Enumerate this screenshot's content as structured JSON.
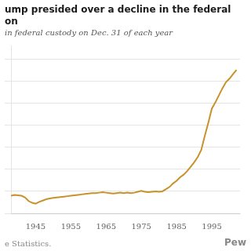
{
  "chart_data": {
    "type": "line",
    "title": [
      "ump presided over a decline in the federal",
      "on"
    ],
    "subtitle": "in federal custody on Dec. 31 of each year",
    "annotations": [
      "e Statistics.",
      "Pew"
    ],
    "x": [
      1938,
      1939,
      1940,
      1941,
      1942,
      1943,
      1944,
      1945,
      1946,
      1947,
      1948,
      1949,
      1950,
      1951,
      1952,
      1953,
      1954,
      1955,
      1956,
      1957,
      1958,
      1959,
      1960,
      1961,
      1962,
      1963,
      1964,
      1965,
      1966,
      1967,
      1968,
      1969,
      1970,
      1971,
      1972,
      1973,
      1974,
      1975,
      1976,
      1977,
      1978,
      1979,
      1980,
      1981,
      1982,
      1983,
      1984,
      1985,
      1986,
      1987,
      1988,
      1989,
      1990,
      1991,
      1992,
      1993,
      1994,
      1995,
      1996,
      1997,
      1998,
      1999,
      2000,
      2001,
      2002
    ],
    "values": [
      20000,
      21000,
      20500,
      20000,
      18000,
      14000,
      12000,
      11000,
      13000,
      14500,
      16000,
      17000,
      17500,
      18000,
      18500,
      19000,
      19500,
      20000,
      20500,
      21000,
      21500,
      22000,
      22500,
      23000,
      23000,
      23500,
      24000,
      23500,
      23000,
      22500,
      23000,
      23500,
      23000,
      23500,
      23000,
      23500,
      24500,
      25500,
      24500,
      24000,
      24500,
      25000,
      24500,
      25000,
      27500,
      30000,
      34000,
      37000,
      41000,
      44000,
      48000,
      53000,
      58000,
      64000,
      72000,
      88000,
      103000,
      119000,
      126000,
      134000,
      142000,
      149000,
      153000,
      158000,
      163000
    ],
    "color": "#c8922a",
    "xlim": [
      1938,
      2003
    ],
    "xticks": [
      1945,
      1955,
      1965,
      1975,
      1985,
      1995
    ],
    "ylim": [
      0,
      190000
    ],
    "yticks": [
      0,
      25000,
      50000,
      75000,
      100000,
      125000,
      150000,
      175000
    ],
    "grid": true,
    "tick_labels": "x"
  }
}
